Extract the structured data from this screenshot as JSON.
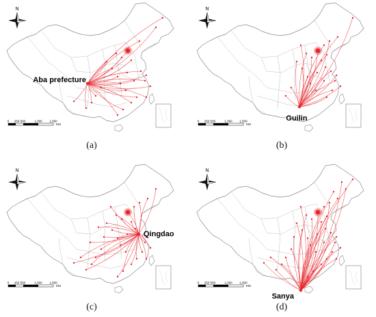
{
  "north_label": "N",
  "scale_ticks": [
    "0",
    "250 500",
    "1,000",
    "1,500"
  ],
  "scale_unit": "KM",
  "flow_color": "#e8262b",
  "panels": [
    {
      "caption": "(a)",
      "city": "Aba prefecture",
      "hub": "west"
    },
    {
      "caption": "(b)",
      "city": "Guilin",
      "hub": "south"
    },
    {
      "caption": "(c)",
      "city": "Qingdao",
      "hub": "east"
    },
    {
      "caption": "(d)",
      "city": "Sanya",
      "hub": "hainan"
    }
  ]
}
